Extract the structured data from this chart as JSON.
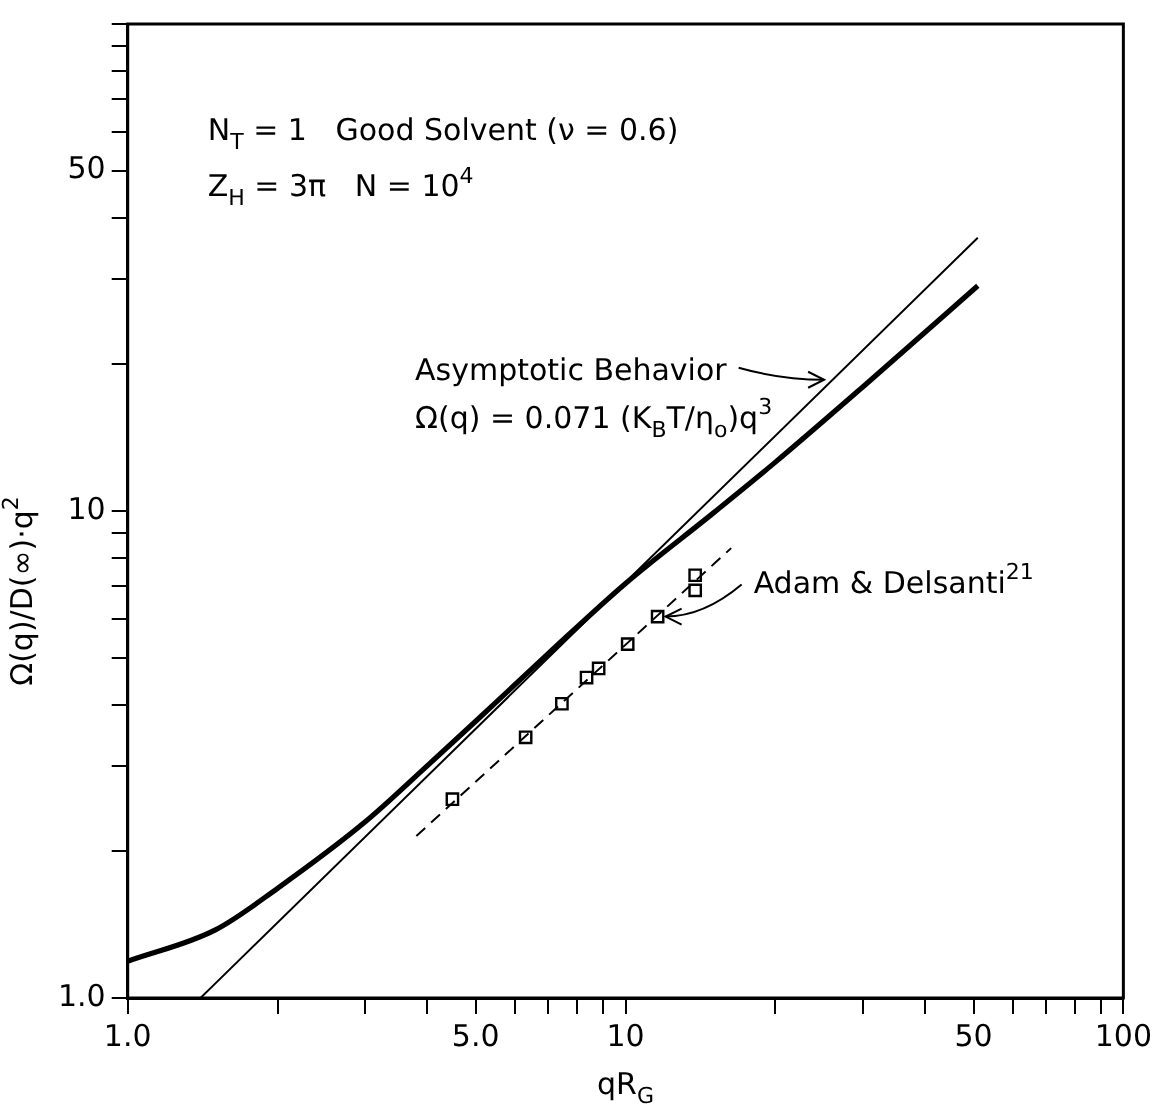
{
  "chart_data": {
    "type": "line",
    "xlabel": "qR$_{G}$",
    "ylabel": "Ω(q)/D(∞)·q$^{2}$",
    "log": "xy",
    "grid": false,
    "legend": false,
    "xlim": [
      1,
      100
    ],
    "ylim": [
      1,
      100
    ],
    "xticks": [
      {
        "value": 1,
        "label": "1.0"
      },
      {
        "value": 2,
        "label": null
      },
      {
        "value": 3,
        "label": null
      },
      {
        "value": 4,
        "label": null
      },
      {
        "value": 5,
        "label": "5.0"
      },
      {
        "value": 6,
        "label": null
      },
      {
        "value": 7,
        "label": null
      },
      {
        "value": 8,
        "label": null
      },
      {
        "value": 9,
        "label": null
      },
      10,
      {
        "value": 20,
        "label": null
      },
      {
        "value": 30,
        "label": null
      },
      {
        "value": 40,
        "label": null
      },
      50,
      {
        "value": 60,
        "label": null
      },
      {
        "value": 70,
        "label": null
      },
      {
        "value": 80,
        "label": null
      },
      {
        "value": 90,
        "label": null
      },
      100
    ],
    "yticks": [
      {
        "value": 1,
        "label": "1.0"
      },
      {
        "value": 2,
        "label": null
      },
      {
        "value": 3,
        "label": null
      },
      {
        "value": 4,
        "label": null
      },
      {
        "value": 5,
        "label": null
      },
      {
        "value": 6,
        "label": null
      },
      {
        "value": 7,
        "label": null
      },
      {
        "value": 8,
        "label": null
      },
      {
        "value": 9,
        "label": null
      },
      10,
      {
        "value": 20,
        "label": null
      },
      {
        "value": 30,
        "label": null
      },
      {
        "value": 40,
        "label": null
      },
      50,
      {
        "value": 60,
        "label": null
      },
      {
        "value": 70,
        "label": null
      },
      {
        "value": 80,
        "label": null
      },
      {
        "value": 90,
        "label": null
      },
      {
        "value": 100,
        "label": null
      }
    ],
    "series": [
      {
        "color": "#000000",
        "line_style": "solid",
        "marker": "none",
        "x": [
          1,
          1.5,
          2,
          3,
          4,
          5,
          7,
          10,
          15,
          20,
          30,
          51
        ],
        "values": [
          1.19,
          1.38,
          1.68,
          2.3,
          3.0,
          3.7,
          5.1,
          7.1,
          9.9,
          12.6,
          18,
          29
        ]
      },
      {
        "color": "#000000",
        "line_style": "solid",
        "marker": "none",
        "x": [
          1.4,
          51
        ],
        "values": [
          1,
          36.4
        ]
      },
      {
        "color": "#000000",
        "line_style": "dashed",
        "marker": "none",
        "x": [
          3.8,
          16.3
        ],
        "values": [
          2.15,
          8.39
        ]
      },
      {
        "type": "scatter",
        "color": "#000000",
        "marker": "square",
        "x": [
          4.49,
          6.3,
          7.45,
          8.35,
          8.83,
          10.1,
          11.6,
          13.8,
          13.8
        ],
        "values": [
          2.56,
          3.43,
          4.02,
          4.55,
          4.75,
          5.33,
          6.07,
          6.87,
          7.38
        ]
      }
    ],
    "annotations": [
      "N$_{T}$ = 1   Good Solvent (ν = 0.6)\nZ$_{H}$ = 3π   N = 10$^{4}$",
      {
        "text": "Asymptotic Behavior\nΩ(q) = 0.071 (K$_{B}$T/η$_{o}$)q$^{3}$",
        "x": 26,
        "y": 18.6
      },
      {
        "text": "Adam & Delsanti$^{21}$",
        "x": 11.6,
        "y": 6.07
      }
    ]
  }
}
